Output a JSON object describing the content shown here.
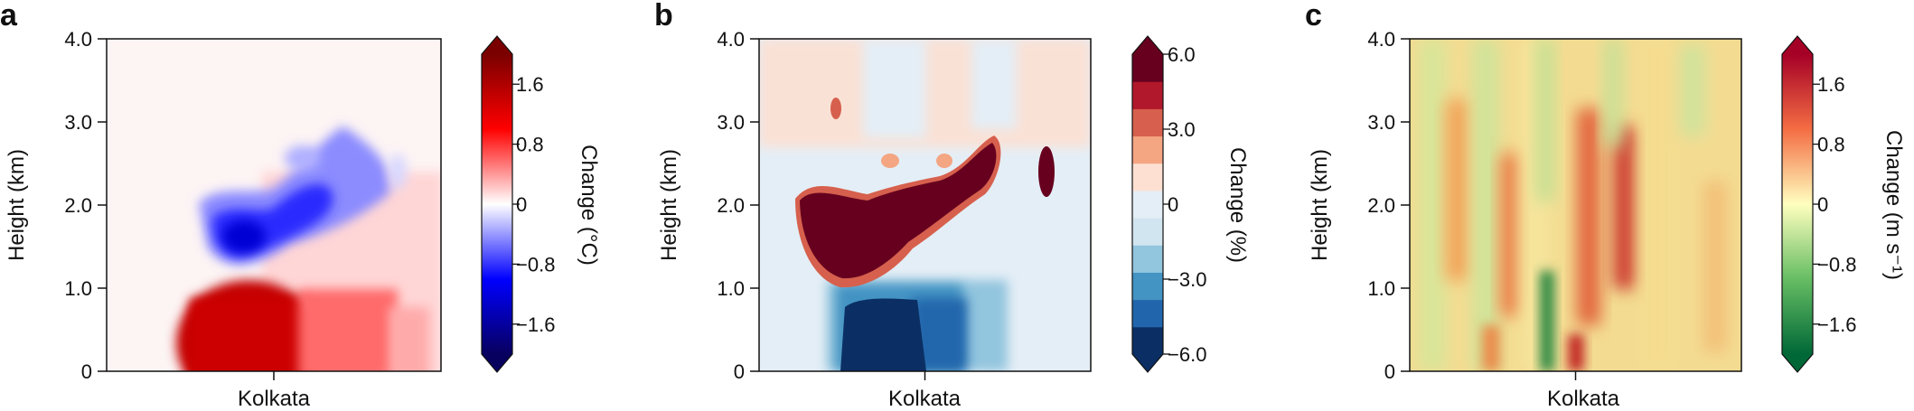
{
  "chart_data": [
    {
      "type": "heatmap",
      "panel_label": "a",
      "xlabel": "Kolkata",
      "ylabel": "Height (km)",
      "yticks": [
        "0",
        "1.0",
        "2.0",
        "3.0",
        "4.0"
      ],
      "ylim": [
        0,
        4
      ],
      "colorbar": {
        "label": "Change (°C)",
        "ticks": [
          "1.6",
          "0.8",
          "0",
          "−0.8",
          "−1.6"
        ],
        "range": [
          -2.0,
          2.0
        ],
        "colors": [
          "#08005f",
          "#0000ff",
          "#ffffff",
          "#ff0000",
          "#7a0000"
        ],
        "extend": "both"
      },
      "features": [
        {
          "name": "cooling-layer",
          "height_km": [
            1.2,
            2.1
          ],
          "value": -1.4
        },
        {
          "name": "surface-warming",
          "height_km": [
            0,
            0.9
          ],
          "value": 1.8
        }
      ]
    },
    {
      "type": "heatmap",
      "panel_label": "b",
      "xlabel": "Kolkata",
      "ylabel": "Height (km)",
      "yticks": [
        "0",
        "1.0",
        "2.0",
        "3.0",
        "4.0"
      ],
      "ylim": [
        0,
        4
      ],
      "colorbar": {
        "label": "Change (%)",
        "ticks": [
          "6.0",
          "3.0",
          "0",
          "−3.0",
          "−6.0"
        ],
        "range": [
          -6.0,
          6.0
        ],
        "colors": [
          "#0b2f64",
          "#2166ac",
          "#4393c3",
          "#92c5de",
          "#d1e5f0",
          "#e4eef6",
          "#fde0d2",
          "#f4a582",
          "#d6604d",
          "#b2182b",
          "#67001f"
        ],
        "extend": "both"
      },
      "features": [
        {
          "name": "increase-layer",
          "height_km": [
            1.2,
            2.5
          ],
          "value": 6.0
        },
        {
          "name": "surface-decrease",
          "height_km": [
            0,
            1.0
          ],
          "value": -6.0
        }
      ]
    },
    {
      "type": "heatmap",
      "panel_label": "c",
      "xlabel": "Kolkata",
      "ylabel": "Height (km)",
      "yticks": [
        "0",
        "1.0",
        "2.0",
        "3.0",
        "4.0"
      ],
      "ylim": [
        0,
        4
      ],
      "colorbar": {
        "label": "Change (m s⁻¹)",
        "ticks": [
          "1.6",
          "0.8",
          "0",
          "−0.8",
          "−1.6"
        ],
        "range": [
          -2.0,
          2.0
        ],
        "colors": [
          "#006837",
          "#66bd63",
          "#ffffbf",
          "#f46d43",
          "#a50026"
        ],
        "extend": "both"
      },
      "features": [
        {
          "name": "vertical-streaks",
          "height_km": [
            0,
            4
          ],
          "value": 0.5
        }
      ]
    }
  ]
}
